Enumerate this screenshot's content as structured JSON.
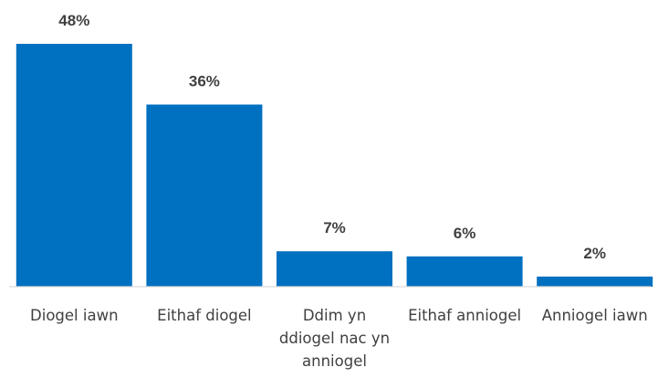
{
  "chart_data": {
    "type": "bar",
    "title": "",
    "xlabel": "",
    "ylabel": "",
    "ylim": [
      0,
      48
    ],
    "grid": false,
    "legend": "none",
    "categories": [
      "Diogel iawn",
      "Eithaf diogel",
      "Ddim yn ddiogel nac yn anniogel",
      "Eithaf anniogel",
      "Anniogel iawn"
    ],
    "category_lines": [
      [
        "Diogel iawn"
      ],
      [
        "Eithaf diogel"
      ],
      [
        "Ddim yn",
        "ddiogel nac yn",
        "anniogel"
      ],
      [
        "Eithaf anniogel"
      ],
      [
        "Anniogel iawn"
      ]
    ],
    "values": [
      48,
      36,
      7,
      6,
      2
    ],
    "data_labels": [
      "48%",
      "36%",
      "7%",
      "6%",
      "2%"
    ],
    "colors": {
      "bar": "#0070C0",
      "axis": "#D9D9D9",
      "text": "#404040"
    }
  }
}
